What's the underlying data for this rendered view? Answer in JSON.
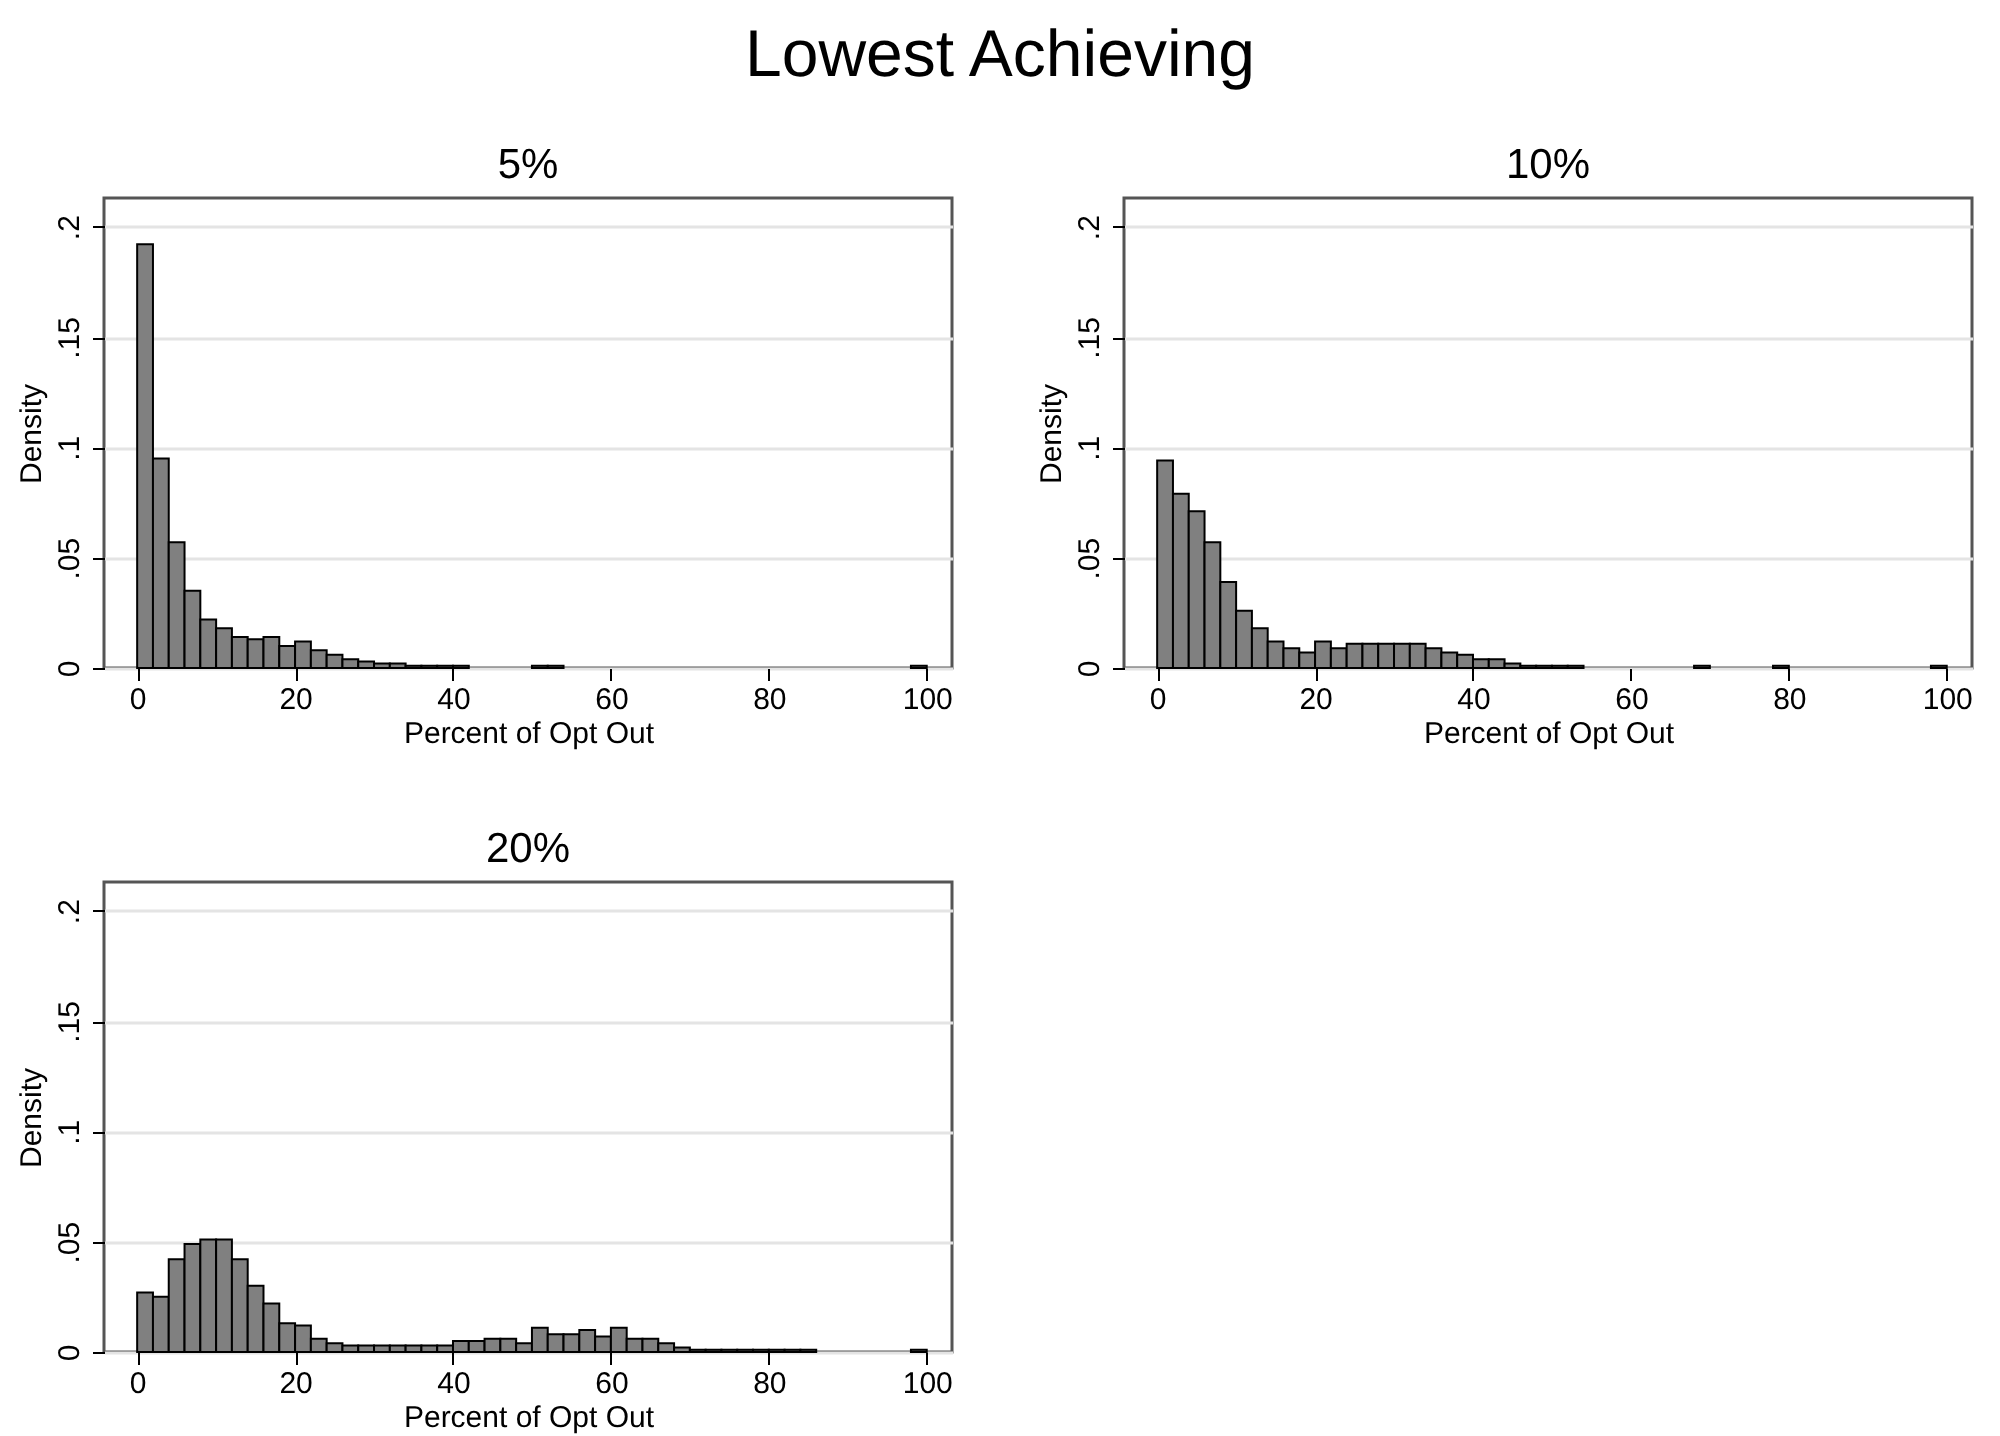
{
  "chart_data": [
    {
      "type": "other",
      "title": "Lowest Achieving"
    },
    {
      "type": "histogram",
      "title": "5%",
      "xlabel": "Percent of Opt Out",
      "ylabel": "Density",
      "color": "#808080",
      "grid": "y",
      "bins": [
        0,
        2,
        4,
        6,
        8,
        10,
        12,
        14,
        16,
        18,
        20,
        22,
        24,
        26,
        28,
        30,
        32,
        34,
        36,
        38,
        40,
        42,
        44,
        46,
        48,
        50,
        52,
        54,
        56,
        58,
        60,
        62,
        64,
        66,
        68,
        70,
        72,
        74,
        76,
        78,
        80,
        82,
        84,
        86,
        88,
        90,
        92,
        94,
        96,
        98,
        100
      ],
      "values": [
        0.192,
        0.095,
        0.057,
        0.035,
        0.022,
        0.018,
        0.014,
        0.013,
        0.014,
        0.01,
        0.012,
        0.008,
        0.006,
        0.004,
        0.003,
        0.002,
        0.002,
        0.001,
        0.001,
        0.001,
        0.001,
        0,
        0,
        0,
        0,
        0.001,
        0.001,
        0,
        0,
        0,
        0,
        0,
        0,
        0,
        0,
        0,
        0,
        0,
        0,
        0,
        0,
        0,
        0,
        0,
        0,
        0,
        0,
        0,
        0,
        0.001
      ],
      "xlim": [
        -4.2,
        103.2
      ],
      "xticks": [
        0,
        20,
        40,
        60,
        80,
        100
      ],
      "ylim": [
        0,
        0.213
      ],
      "yticks": [
        {
          "value": 0,
          "label": "0"
        },
        {
          "value": 0.05,
          "label": ".05"
        },
        {
          "value": 0.1,
          "label": ".1"
        },
        {
          "value": 0.15,
          "label": ".15"
        },
        {
          "value": 0.2,
          "label": ".2"
        }
      ]
    },
    {
      "type": "histogram",
      "title": "10%",
      "xlabel": "Percent of Opt Out",
      "ylabel": "Density",
      "color": "#808080",
      "grid": "y",
      "bins": [
        0,
        2,
        4,
        6,
        8,
        10,
        12,
        14,
        16,
        18,
        20,
        22,
        24,
        26,
        28,
        30,
        32,
        34,
        36,
        38,
        40,
        42,
        44,
        46,
        48,
        50,
        52,
        54,
        56,
        58,
        60,
        62,
        64,
        66,
        68,
        70,
        72,
        74,
        76,
        78,
        80,
        82,
        84,
        86,
        88,
        90,
        92,
        94,
        96,
        98,
        100
      ],
      "values": [
        0.094,
        0.079,
        0.071,
        0.057,
        0.039,
        0.026,
        0.018,
        0.012,
        0.009,
        0.007,
        0.012,
        0.009,
        0.011,
        0.011,
        0.011,
        0.011,
        0.011,
        0.009,
        0.007,
        0.006,
        0.004,
        0.004,
        0.002,
        0.001,
        0.001,
        0.001,
        0.001,
        0,
        0,
        0,
        0,
        0,
        0,
        0,
        0.001,
        0,
        0,
        0,
        0,
        0.001,
        0,
        0,
        0,
        0,
        0,
        0,
        0,
        0,
        0,
        0.001
      ],
      "xlim": [
        -4.2,
        103.2
      ],
      "xticks": [
        0,
        20,
        40,
        60,
        80,
        100
      ],
      "ylim": [
        0,
        0.213
      ],
      "yticks": [
        {
          "value": 0,
          "label": "0"
        },
        {
          "value": 0.05,
          "label": ".05"
        },
        {
          "value": 0.1,
          "label": ".1"
        },
        {
          "value": 0.15,
          "label": ".15"
        },
        {
          "value": 0.2,
          "label": ".2"
        }
      ]
    },
    {
      "type": "histogram",
      "title": "20%",
      "xlabel": "Percent of Opt Out",
      "ylabel": "Density",
      "color": "#808080",
      "grid": "y",
      "bins": [
        0,
        2,
        4,
        6,
        8,
        10,
        12,
        14,
        16,
        18,
        20,
        22,
        24,
        26,
        28,
        30,
        32,
        34,
        36,
        38,
        40,
        42,
        44,
        46,
        48,
        50,
        52,
        54,
        56,
        58,
        60,
        62,
        64,
        66,
        68,
        70,
        72,
        74,
        76,
        78,
        80,
        82,
        84,
        86,
        88,
        90,
        92,
        94,
        96,
        98,
        100
      ],
      "values": [
        0.027,
        0.025,
        0.042,
        0.049,
        0.051,
        0.051,
        0.042,
        0.03,
        0.022,
        0.013,
        0.012,
        0.006,
        0.004,
        0.003,
        0.003,
        0.003,
        0.003,
        0.003,
        0.003,
        0.003,
        0.005,
        0.005,
        0.006,
        0.006,
        0.004,
        0.011,
        0.008,
        0.008,
        0.01,
        0.007,
        0.011,
        0.006,
        0.006,
        0.004,
        0.002,
        0.001,
        0.001,
        0.001,
        0.001,
        0.001,
        0.001,
        0.001,
        0.001,
        0,
        0,
        0,
        0,
        0,
        0,
        0.001
      ],
      "xlim": [
        -4.2,
        103.2
      ],
      "xticks": [
        0,
        20,
        40,
        60,
        80,
        100
      ],
      "ylim": [
        0,
        0.213
      ],
      "yticks": [
        {
          "value": 0,
          "label": "0"
        },
        {
          "value": 0.05,
          "label": ".05"
        },
        {
          "value": 0.1,
          "label": ".1"
        },
        {
          "value": 0.15,
          "label": ".15"
        },
        {
          "value": 0.2,
          "label": ".2"
        }
      ]
    }
  ]
}
